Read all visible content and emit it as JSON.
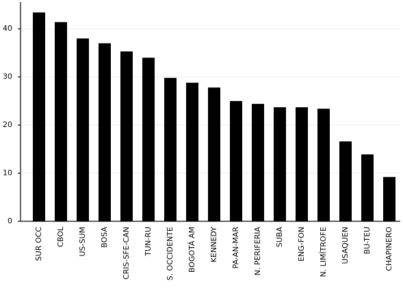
{
  "chart_data": {
    "type": "bar",
    "categories": [
      "SUR OCC",
      "CBOL",
      "US-SUM",
      "BOSA",
      "CRIS-SFE-CAN",
      "TUN-RU",
      "S. OCCIDENTE",
      "BOGOTÁ AM",
      "KENNEDY",
      "PA-AN-MAR",
      "N. PERIFERIA",
      "SUBA",
      "ENG-FON",
      "N. LIMÍTROFE",
      "USAQUEN",
      "BU-TEU",
      "CHAPINERO"
    ],
    "values": [
      43.4,
      41.4,
      38.0,
      37.0,
      35.3,
      34.0,
      29.8,
      28.8,
      27.8,
      25.0,
      24.4,
      23.7,
      23.7,
      23.4,
      16.6,
      13.9,
      9.2
    ],
    "color": "#000000",
    "ylim": [
      0,
      45
    ],
    "yticks": [
      0,
      10,
      20,
      30,
      40
    ],
    "grid": true
  }
}
